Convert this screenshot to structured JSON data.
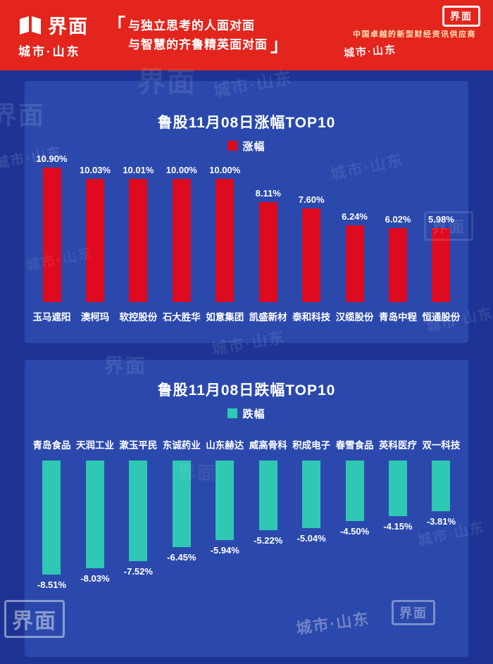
{
  "header": {
    "logo_text": "界面",
    "logo_sub": "城市·山东",
    "quote_open": "「",
    "quote_close": "」",
    "quote_line1": "与独立思考的人面对面",
    "quote_line2": "与智慧的齐鲁精英面对面",
    "tagline": "中国卓越的新型财经资讯供应商"
  },
  "watermark": {
    "brand": "界面",
    "city": "城市·山东"
  },
  "colors": {
    "header_red": "#e3251d",
    "background_blue": "#1e3494",
    "card_blue": "#2b49ac",
    "up_red": "#de0b20",
    "down_teal": "#2fc8b4"
  },
  "chart_data": [
    {
      "type": "bar",
      "title": "鲁股11月08日涨幅TOP10",
      "legend": "涨幅",
      "direction": "up",
      "unit": "%",
      "bar_color": "#de0b20",
      "categories": [
        "玉马遮阳",
        "澳柯玛",
        "软控股份",
        "石大胜华",
        "如意集团",
        "凯盛新材",
        "泰和科技",
        "汉缆股份",
        "青岛中程",
        "恒通股份"
      ],
      "values": [
        10.9,
        10.03,
        10.01,
        10.0,
        10.0,
        8.11,
        7.6,
        6.24,
        6.02,
        5.98
      ],
      "ylim": [
        0,
        11
      ]
    },
    {
      "type": "bar",
      "title": "鲁股11月08日跌幅TOP10",
      "legend": "跌幅",
      "direction": "down",
      "unit": "%",
      "bar_color": "#2fc8b4",
      "categories": [
        "青岛食品",
        "天润工业",
        "漱玉平民",
        "东诚药业",
        "山东赫达",
        "威高骨科",
        "积成电子",
        "春雪食品",
        "英科医疗",
        "双一科技"
      ],
      "values": [
        -8.51,
        -8.03,
        -7.52,
        -6.45,
        -5.94,
        -5.22,
        -5.04,
        -4.5,
        -4.15,
        -3.81
      ],
      "ylim": [
        -9,
        0
      ]
    }
  ]
}
